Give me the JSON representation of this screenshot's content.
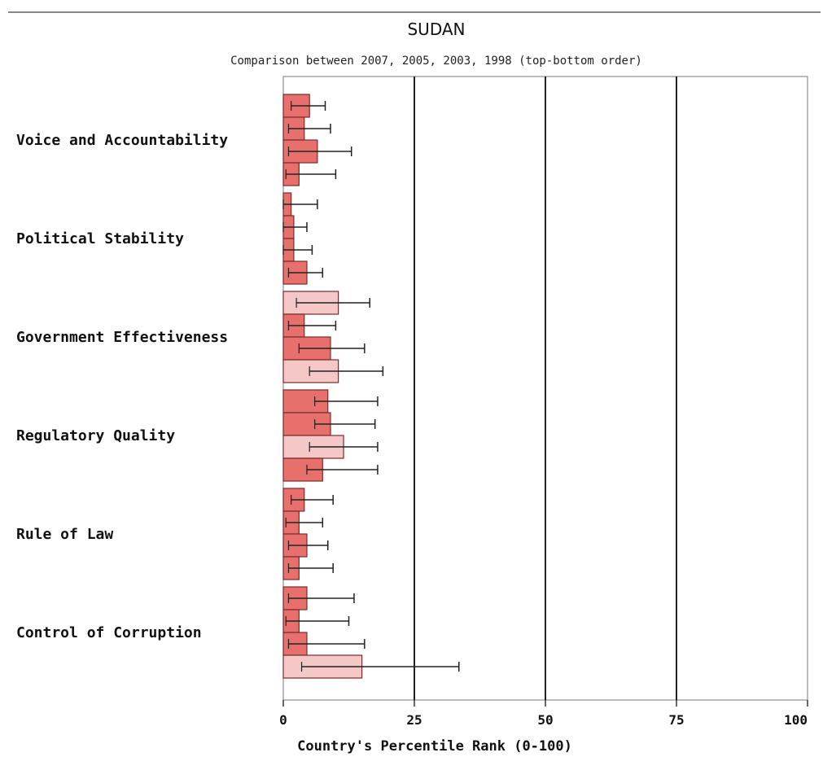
{
  "chart_data": {
    "type": "bar",
    "orientation": "horizontal",
    "title": "SUDAN",
    "subtitle": "Comparison between 2007, 2005, 2003, 1998 (top-bottom order)",
    "xlabel": "Country's Percentile Rank (0-100)",
    "xlim": [
      0,
      100
    ],
    "xticks": [
      "0",
      "25",
      "50",
      "75",
      "100"
    ],
    "grid": "vertical at 25, 50, 75",
    "categories": [
      "Voice and Accountability",
      "Political Stability",
      "Government Effectiveness",
      "Regulatory Quality",
      "Rule of Law",
      "Control of Corruption"
    ],
    "series": [
      {
        "year_order": 1,
        "values": [
          5.0,
          1.5,
          10.5,
          8.5,
          4.0,
          4.5
        ],
        "lower": [
          1.5,
          0.0,
          2.5,
          6.0,
          1.5,
          1.0
        ],
        "upper": [
          8.0,
          6.5,
          16.5,
          18.0,
          9.5,
          13.5
        ],
        "light": [
          false,
          false,
          true,
          false,
          false,
          false
        ]
      },
      {
        "year_order": 2,
        "values": [
          4.0,
          2.0,
          4.0,
          9.0,
          3.0,
          3.0
        ],
        "lower": [
          1.0,
          0.0,
          1.0,
          6.0,
          0.5,
          0.5
        ],
        "upper": [
          9.0,
          4.5,
          10.0,
          17.5,
          7.5,
          12.5
        ],
        "light": [
          false,
          false,
          false,
          false,
          false,
          false
        ]
      },
      {
        "year_order": 3,
        "values": [
          6.5,
          2.0,
          9.0,
          11.5,
          4.5,
          4.5
        ],
        "lower": [
          1.0,
          0.0,
          3.0,
          5.0,
          1.0,
          1.0
        ],
        "upper": [
          13.0,
          5.5,
          15.5,
          18.0,
          8.5,
          15.5
        ],
        "light": [
          false,
          false,
          false,
          true,
          false,
          false
        ]
      },
      {
        "year_order": 4,
        "values": [
          3.0,
          4.5,
          10.5,
          7.5,
          3.0,
          15.0
        ],
        "lower": [
          0.5,
          1.0,
          5.0,
          4.5,
          1.0,
          3.5
        ],
        "upper": [
          10.0,
          7.5,
          19.0,
          18.0,
          9.5,
          33.5
        ],
        "light": [
          false,
          false,
          true,
          false,
          false,
          true
        ]
      }
    ],
    "colors": {
      "bar": "#e8706c",
      "bar_light": "#f4c8c6",
      "bar_stroke": "#7a2a2a",
      "errorbar": "#222222",
      "grid": "#222222",
      "axis": "#555555"
    }
  }
}
